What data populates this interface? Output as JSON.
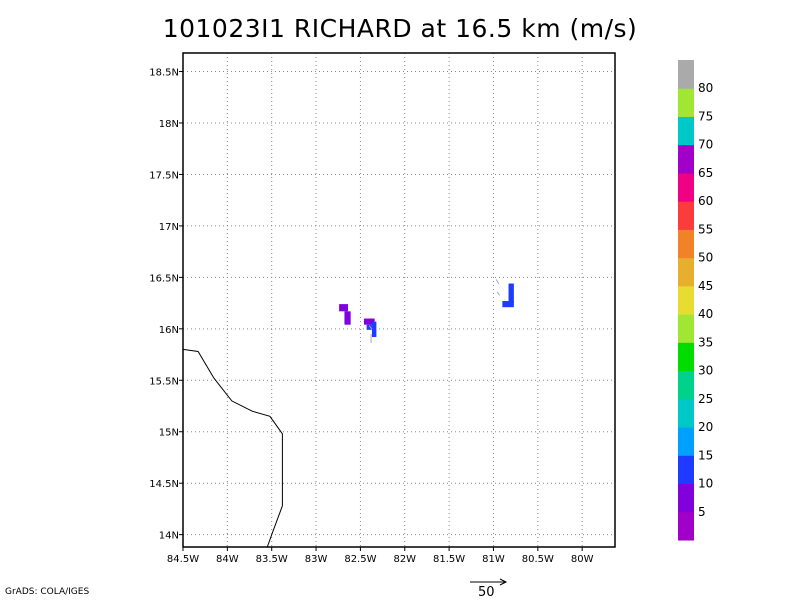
{
  "chart_data": {
    "type": "heatmap",
    "title": "101023I1 RICHARD at 16.5 km (m/s)",
    "xlim": [
      -84.5,
      -79.63
    ],
    "ylim": [
      13.88,
      18.68
    ],
    "xticks": [
      {
        "value": -84.5,
        "label": "84.5W"
      },
      {
        "value": -84.0,
        "label": "84W"
      },
      {
        "value": -83.5,
        "label": "83.5W"
      },
      {
        "value": -83.0,
        "label": "83W"
      },
      {
        "value": -82.5,
        "label": "82.5W"
      },
      {
        "value": -82.0,
        "label": "82W"
      },
      {
        "value": -81.5,
        "label": "81.5W"
      },
      {
        "value": -81.0,
        "label": "81W"
      },
      {
        "value": -80.5,
        "label": "80.5W"
      },
      {
        "value": -80.0,
        "label": "80W"
      }
    ],
    "yticks": [
      {
        "value": 14.0,
        "label": "14N"
      },
      {
        "value": 14.5,
        "label": "14.5N"
      },
      {
        "value": 15.0,
        "label": "15N"
      },
      {
        "value": 15.5,
        "label": "15.5N"
      },
      {
        "value": 16.0,
        "label": "16N"
      },
      {
        "value": 16.5,
        "label": "16.5N"
      },
      {
        "value": 17.0,
        "label": "17N"
      },
      {
        "value": 17.5,
        "label": "17.5N"
      },
      {
        "value": 18.0,
        "label": "18N"
      },
      {
        "value": 18.5,
        "label": "18.5N"
      }
    ],
    "grid": true,
    "coastline": [
      [
        -84.5,
        15.8
      ],
      [
        -84.33,
        15.78
      ],
      [
        -84.15,
        15.52
      ],
      [
        -83.95,
        15.3
      ],
      [
        -83.72,
        15.2
      ],
      [
        -83.52,
        15.15
      ],
      [
        -83.38,
        14.98
      ],
      [
        -83.38,
        14.28
      ],
      [
        -83.5,
        14.0
      ],
      [
        -83.55,
        13.88
      ]
    ],
    "cells": [
      {
        "x": [
          -82.74,
          -82.64
        ],
        "y": [
          16.17,
          16.24
        ],
        "value": 6
      },
      {
        "x": [
          -82.68,
          -82.61
        ],
        "y": [
          16.04,
          16.17
        ],
        "value": 6
      },
      {
        "x": [
          -82.46,
          -82.34
        ],
        "y": [
          16.04,
          16.1
        ],
        "value": 6
      },
      {
        "x": [
          -82.43,
          -82.37
        ],
        "y": [
          15.99,
          16.04
        ],
        "value": 12
      },
      {
        "x": [
          -82.37,
          -82.32
        ],
        "y": [
          15.92,
          16.07
        ],
        "value": 12
      },
      {
        "x": [
          -80.83,
          -80.77
        ],
        "y": [
          16.25,
          16.44
        ],
        "value": 12
      },
      {
        "x": [
          -80.9,
          -80.77
        ],
        "y": [
          16.21,
          16.27
        ],
        "value": 12
      }
    ],
    "wind_vectors": [
      {
        "x": -82.38,
        "y": 15.95,
        "u": 0,
        "v": -10
      },
      {
        "x": -82.4,
        "y": 16.03,
        "u": 3,
        "v": -4
      },
      {
        "x": -80.97,
        "y": 16.48,
        "u": 3,
        "v": -5
      },
      {
        "x": -80.96,
        "y": 16.36,
        "u": 3,
        "v": -4
      }
    ],
    "colorbar": {
      "colors": [
        "#a000c8",
        "#8200dc",
        "#1e3cff",
        "#00a0ff",
        "#00c8c8",
        "#00d28c",
        "#00dc00",
        "#a0e632",
        "#e6dc32",
        "#e6af2d",
        "#f08228",
        "#fa3c3c",
        "#f00082",
        "#a000c8",
        "#00c8c8",
        "#a0e632",
        "#aaaaaa"
      ],
      "labels": [
        "5",
        "10",
        "15",
        "20",
        "25",
        "30",
        "35",
        "40",
        "45",
        "50",
        "55",
        "60",
        "65",
        "70",
        "75",
        "80"
      ]
    },
    "reference_vector": {
      "value": 50,
      "label": "50"
    }
  },
  "footer": "GrADS: COLA/IGES"
}
